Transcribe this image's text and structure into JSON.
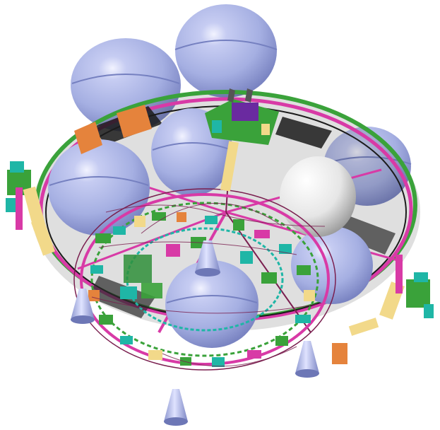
{
  "scene": {
    "subject": "spacecraft-propulsion-module-cad-render",
    "background_color": "#ffffff",
    "palette": {
      "tank": "#a9b4e6",
      "tank_dark": "#7c86c4",
      "tank_highlight": "#eef0ff",
      "sphere_white": "#f3f3f3",
      "deck_magenta": "#d83aa6",
      "rim_green": "#3aa23a",
      "cyan": "#1fb6a6",
      "orange": "#e5833c",
      "cream": "#f2d98a",
      "purple": "#6a2aa0",
      "black_panel": "#1b1b1b",
      "nozzle": "#b6c0ee"
    }
  }
}
